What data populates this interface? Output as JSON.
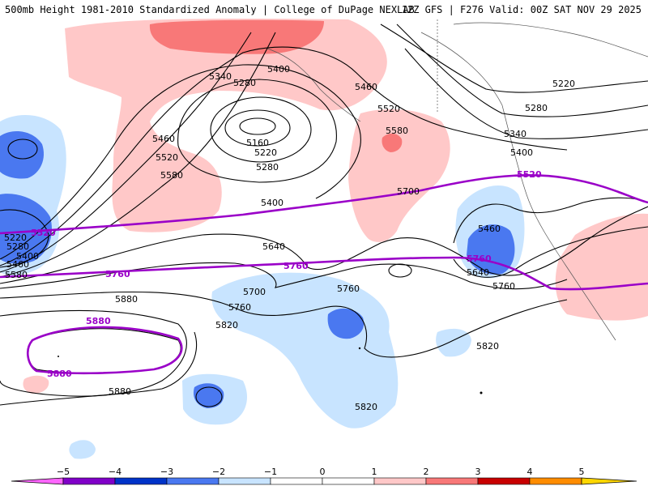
{
  "header": {
    "title": "500mb Height 1981-2010 Standardized Anomaly | College of DuPage NEXLAB",
    "valid": "12Z GFS | F276 Valid: 00Z SAT NOV 29 2025"
  },
  "colors": {
    "pos1": "#ffc8c8",
    "pos2": "#f87878",
    "pos3": "#c80000",
    "pos4": "#ff8c00",
    "pos5": "#ffd700",
    "neg1": "#c8e4ff",
    "neg2": "#4a78f0",
    "neg3": "#0033c8",
    "neg4": "#8000c8",
    "neg5": "#ff66ff",
    "contour": "#000000",
    "highlight": "#9a00c8"
  },
  "contour_labels": [
    "5340",
    "5280",
    "5400",
    "5460",
    "5520",
    "5580",
    "5160",
    "5220",
    "5280",
    "5400",
    "5460",
    "5520",
    "5580",
    "5700",
    "5640",
    "5760",
    "5700",
    "5760",
    "5820",
    "5880",
    "5880",
    "5820",
    "5640",
    "5460",
    "5760",
    "5820",
    "5220",
    "5280",
    "5340",
    "5400",
    "5220",
    "5280",
    "5400",
    "5460",
    "5580"
  ],
  "highlight_labels": [
    "5520",
    "5520",
    "5760",
    "5760",
    "5760",
    "5880",
    "5880"
  ],
  "colorbar": {
    "ticks": [
      "−5",
      "−4",
      "−3",
      "−2",
      "−1",
      "0",
      "1",
      "2",
      "3",
      "4",
      "5"
    ]
  }
}
